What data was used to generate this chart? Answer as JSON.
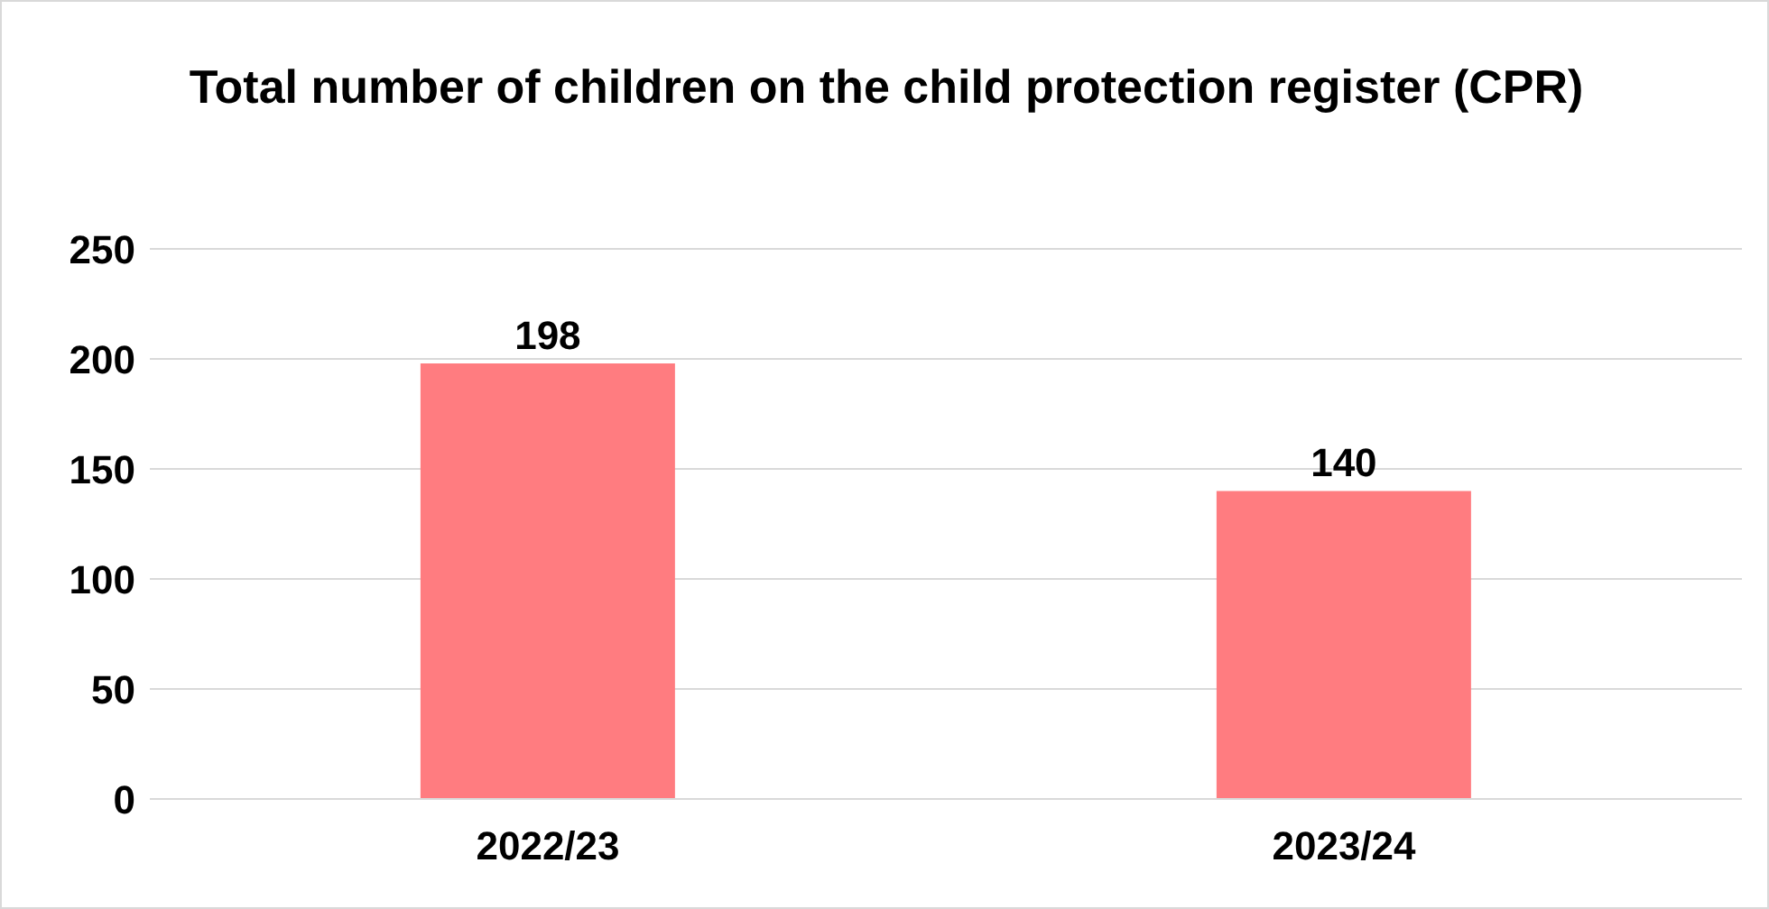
{
  "chart_data": {
    "type": "bar",
    "title": "Total number of children on the child protection register (CPR)",
    "categories": [
      "2022/23",
      "2023/24"
    ],
    "values": [
      198,
      140
    ],
    "color": "#ff7c80",
    "ylim": [
      0,
      250
    ],
    "yticks": [
      0,
      50,
      100,
      150,
      200,
      250
    ],
    "grid": "y",
    "data_labels": true
  }
}
